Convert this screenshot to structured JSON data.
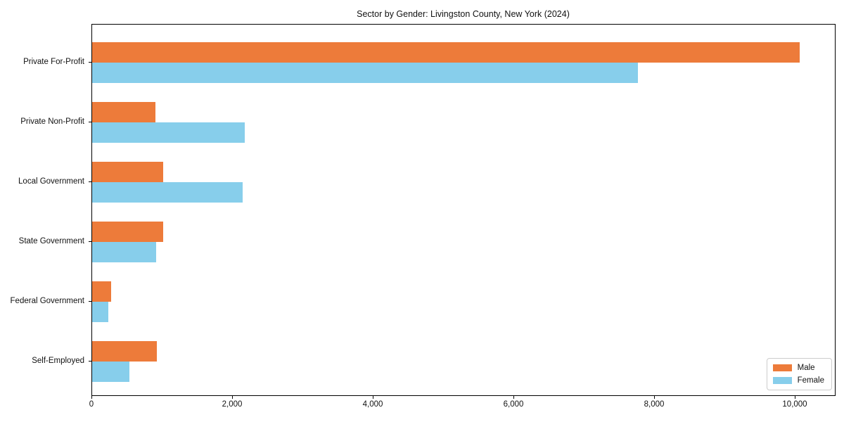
{
  "chart_data": {
    "type": "bar",
    "orientation": "horizontal",
    "title": "Sector by Gender: Livingston County, New York (2024)",
    "categories": [
      "Private For-Profit",
      "Private Non-Profit",
      "Local Government",
      "State Government",
      "Federal Government",
      "Self-Employed"
    ],
    "series": [
      {
        "name": "Male",
        "color": "#ed7b3a",
        "values": [
          10060,
          900,
          1010,
          1010,
          270,
          920
        ]
      },
      {
        "name": "Female",
        "color": "#87ceeb",
        "values": [
          7760,
          2170,
          2140,
          910,
          230,
          530
        ]
      }
    ],
    "xlabel": "",
    "ylabel": "",
    "xlim": [
      0,
      10560
    ],
    "x_ticks": [
      0,
      2000,
      4000,
      6000,
      8000,
      10000
    ],
    "x_tick_labels": [
      "0",
      "2,000",
      "4,000",
      "6,000",
      "8,000",
      "10,000"
    ],
    "grid": false,
    "legend": {
      "position": "lower right",
      "entries": [
        "Male",
        "Female"
      ]
    }
  },
  "colors": {
    "background": "#ffffff",
    "spine": "#000000",
    "legend_border": "#cccccc"
  }
}
